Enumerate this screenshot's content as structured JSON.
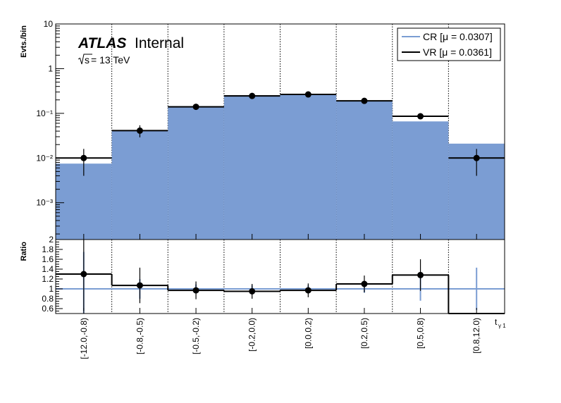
{
  "chart_data": [
    {
      "type": "bar",
      "panel": "main",
      "ylabel": "Evts./bin",
      "yscale": "log",
      "ylim": [
        0.00015,
        10
      ],
      "yticks": [
        {
          "value": 10,
          "label": "10"
        },
        {
          "value": 1,
          "label": "1"
        },
        {
          "value": 0.1,
          "label": "10⁻¹"
        },
        {
          "value": 0.01,
          "label": "10⁻²"
        },
        {
          "value": 0.001,
          "label": "10⁻³"
        }
      ],
      "categories": [
        "[-12.0,-0.8)",
        "[-0.8,-0.5)",
        "[-0.5,-0.2)",
        "[-0.2,0.0)",
        "[0.0,0.2)",
        "[0.2,0.5)",
        "[0.5,0.8)",
        "[0.8,12.0)"
      ],
      "xlabel": "t",
      "xlabel_sub": "γ 1",
      "annotations": {
        "experiment": "ATLAS",
        "status": "Internal",
        "energy_sqrt": "s",
        "energy_value": " = 13 TeV"
      },
      "legend_position": "top-right",
      "series": [
        {
          "name": "CR [μ = 0.0307]",
          "style": "filled-histogram",
          "color": "#7b9dd3",
          "values": [
            0.0075,
            0.041,
            0.145,
            0.255,
            0.265,
            0.19,
            0.066,
            0.021
          ]
        },
        {
          "name": "VR [μ = 0.0361]",
          "style": "step-line-with-markers",
          "color": "#000000",
          "values": [
            0.01,
            0.041,
            0.14,
            0.245,
            0.265,
            0.19,
            0.086,
            0.01
          ],
          "errors_low": [
            0.006,
            0.012,
            0.012,
            0.015,
            0.015,
            0.013,
            0.012,
            0.006
          ],
          "errors_high": [
            0.006,
            0.013,
            0.014,
            0.016,
            0.016,
            0.014,
            0.013,
            0.006
          ]
        }
      ]
    },
    {
      "type": "line",
      "panel": "ratio",
      "ylabel": "Ratio",
      "ylim": [
        0.5,
        2.0
      ],
      "yticks": [
        {
          "value": 2,
          "label": "2"
        },
        {
          "value": 1.8,
          "label": "1.8"
        },
        {
          "value": 1.6,
          "label": "1.6"
        },
        {
          "value": 1.4,
          "label": "1.4"
        },
        {
          "value": 1.2,
          "label": "1.2"
        },
        {
          "value": 1,
          "label": "1"
        },
        {
          "value": 0.8,
          "label": "0.8"
        },
        {
          "value": 0.6,
          "label": "0.6"
        }
      ],
      "reference_line": 1,
      "series": [
        {
          "name": "",
          "style": "step-line-with-markers",
          "color": "#000000",
          "values": [
            1.3,
            1.07,
            0.97,
            0.95,
            0.97,
            1.1,
            1.28,
            0.5
          ],
          "errors": [
            0.75,
            0.36,
            0.18,
            0.15,
            0.14,
            0.17,
            0.32,
            0
          ],
          "show_marker": [
            true,
            true,
            true,
            true,
            true,
            true,
            true,
            false
          ]
        },
        {
          "name": "",
          "style": "error-bars",
          "color": "#7b9dd3",
          "values": [
            1,
            1,
            1,
            1,
            1,
            1,
            1,
            1
          ],
          "errors": [
            0.75,
            0.2,
            0.09,
            0.07,
            0.07,
            0.08,
            0.24,
            0.43
          ],
          "show_marker": [
            false,
            false,
            false,
            false,
            false,
            false,
            false,
            false
          ]
        }
      ]
    }
  ]
}
